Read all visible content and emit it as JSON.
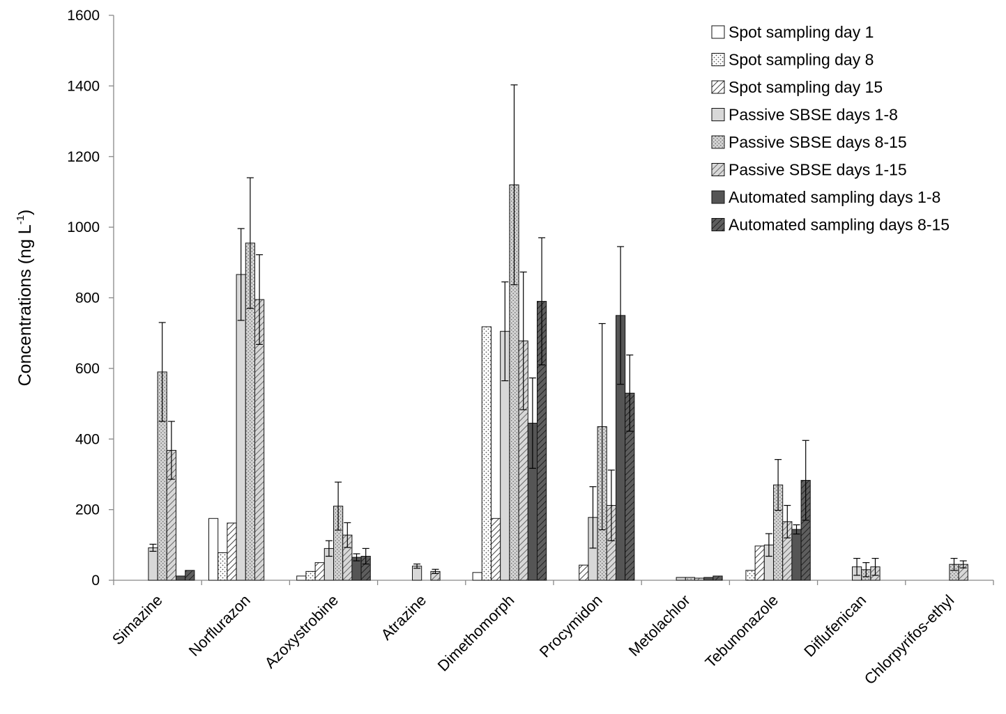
{
  "chart_data": {
    "type": "bar",
    "title": "",
    "ylabel": "Concentrations  (ng L",
    "ylabel_sup": "-1",
    "ylabel_close": ")",
    "xlabel": "",
    "ylim": [
      0,
      1600
    ],
    "ytick_step": 200,
    "yticks": [
      "0",
      "200",
      "400",
      "600",
      "800",
      "1000",
      "1200",
      "1400",
      "1600"
    ],
    "grid": false,
    "legend_position": "top-right",
    "categories": [
      "Simazine",
      "Norflurazon",
      "Azoxystrobine",
      "Atrazine",
      "Dimethomorph",
      "Procymidon",
      "Metolachlor",
      "Tebunonazole",
      "Diflufenican",
      "Chlorpyrifos-ethyl"
    ],
    "series": [
      {
        "name": "Spot sampling day 1",
        "pattern": "white",
        "values": [
          null,
          175,
          12,
          null,
          22,
          null,
          null,
          null,
          null,
          null
        ],
        "errors": [
          null,
          null,
          null,
          null,
          null,
          null,
          null,
          null,
          null,
          null
        ]
      },
      {
        "name": "Spot sampling day 8",
        "pattern": "dots",
        "values": [
          null,
          78,
          25,
          null,
          718,
          null,
          null,
          28,
          null,
          null
        ],
        "errors": [
          null,
          null,
          null,
          null,
          null,
          null,
          null,
          null,
          null,
          null
        ]
      },
      {
        "name": "Spot sampling day 15",
        "pattern": "hatch",
        "values": [
          null,
          162,
          50,
          null,
          175,
          43,
          null,
          97,
          null,
          null
        ],
        "errors": [
          null,
          null,
          null,
          null,
          null,
          null,
          null,
          null,
          null,
          null
        ]
      },
      {
        "name": "Passive SBSE days 1-8",
        "pattern": "lightgray",
        "values": [
          92,
          866,
          90,
          40,
          705,
          178,
          8,
          100,
          38,
          null
        ],
        "errors": [
          10,
          130,
          22,
          6,
          140,
          87,
          0,
          32,
          24,
          null
        ]
      },
      {
        "name": "Passive SBSE days 8-15",
        "pattern": "gray-dots",
        "values": [
          590,
          955,
          210,
          null,
          1120,
          435,
          8,
          270,
          30,
          45
        ],
        "errors": [
          140,
          185,
          68,
          null,
          283,
          292,
          0,
          72,
          20,
          17
        ]
      },
      {
        "name": "Passive SBSE days 1-15",
        "pattern": "gray-hatch",
        "values": [
          368,
          795,
          128,
          25,
          678,
          212,
          6,
          166,
          38,
          45
        ],
        "errors": [
          82,
          127,
          35,
          6,
          195,
          100,
          0,
          46,
          24,
          10
        ]
      },
      {
        "name": "Automated sampling days 1-8",
        "pattern": "dark",
        "values": [
          12,
          null,
          65,
          null,
          445,
          750,
          8,
          144,
          null,
          null
        ],
        "errors": [
          null,
          null,
          10,
          null,
          128,
          195,
          null,
          13,
          null,
          null
        ]
      },
      {
        "name": "Automated sampling days 8-15",
        "pattern": "dark-hatch",
        "values": [
          28,
          null,
          68,
          null,
          790,
          530,
          12,
          283,
          null,
          null
        ],
        "errors": [
          null,
          null,
          22,
          null,
          180,
          108,
          null,
          113,
          null,
          null
        ]
      }
    ]
  }
}
